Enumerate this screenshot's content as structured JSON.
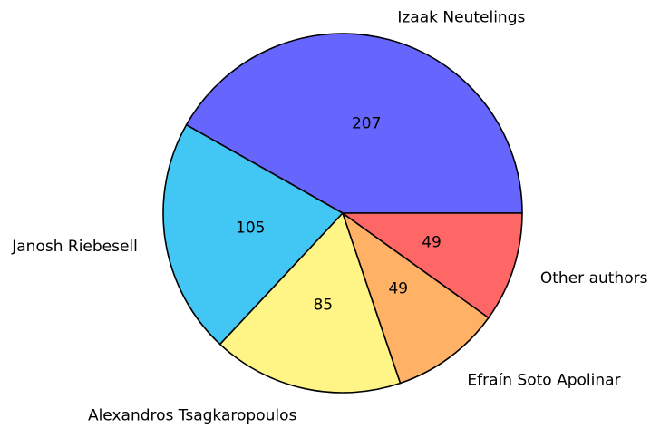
{
  "chart_data": {
    "type": "pie",
    "title": "",
    "slices": [
      {
        "label": "Izaak Neutelings",
        "value": 207,
        "color": "#6666ff"
      },
      {
        "label": "Janosh Riebesell",
        "value": 105,
        "color": "#42c6f3"
      },
      {
        "label": "Alexandros Tsagkaropoulos",
        "value": 85,
        "color": "#fff587"
      },
      {
        "label": "Efraín Soto Apolinar",
        "value": 49,
        "color": "#ffb166"
      },
      {
        "label": "Other authors",
        "value": 49,
        "color": "#ff6666"
      }
    ],
    "start_angle_deg": 0,
    "direction": "counterclockwise",
    "legend": "none",
    "data_labels": "inside values, outside names"
  }
}
